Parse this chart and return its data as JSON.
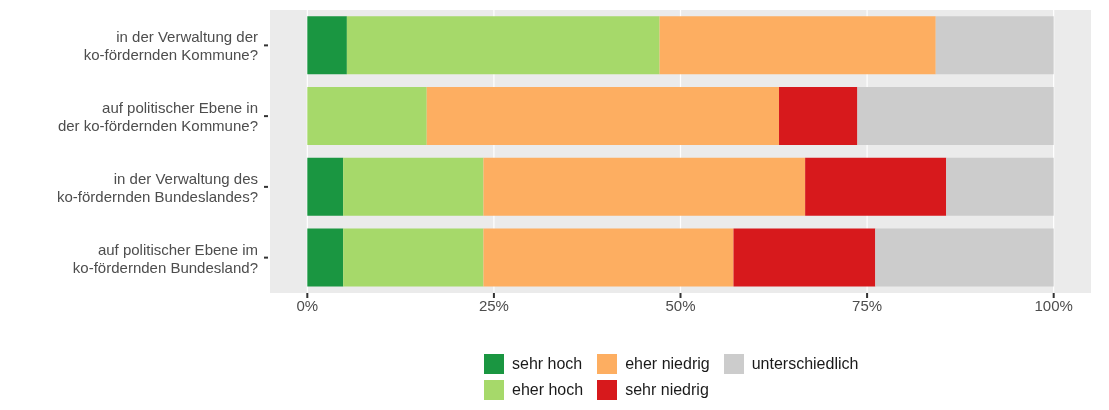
{
  "chart_data": {
    "type": "bar",
    "orientation": "horizontal",
    "stacked": true,
    "categories": [
      "in der Verwaltung der\nko-fördernden Kommune?",
      "auf politischer Ebene in\nder ko-fördernden Kommune?",
      "in der Verwaltung des\nko-fördernden Bundeslandes?",
      "auf politischer Ebene im\nko-fördernden Bundesland?"
    ],
    "series": [
      {
        "name": "sehr hoch",
        "color": "#1a9641",
        "values": [
          5.3,
          0,
          4.8,
          4.8
        ]
      },
      {
        "name": "eher hoch",
        "color": "#a6d96a",
        "values": [
          41.9,
          16.0,
          18.8,
          18.8
        ]
      },
      {
        "name": "eher niedrig",
        "color": "#fdae61",
        "values": [
          37.0,
          47.2,
          43.1,
          33.5
        ]
      },
      {
        "name": "sehr niedrig",
        "color": "#d7191c",
        "values": [
          0,
          10.5,
          18.9,
          19.0
        ]
      },
      {
        "name": "unterschiedlich",
        "color": "#cccccc",
        "values": [
          15.8,
          26.3,
          14.4,
          23.9
        ]
      }
    ],
    "xlim": [
      -5,
      105
    ],
    "xticks": [
      {
        "value": 0,
        "label": "0%"
      },
      {
        "value": 25,
        "label": "25%"
      },
      {
        "value": 50,
        "label": "50%"
      },
      {
        "value": 75,
        "label": "75%"
      },
      {
        "value": 100,
        "label": "100%"
      }
    ],
    "grid": "x",
    "legend": "bottom"
  }
}
